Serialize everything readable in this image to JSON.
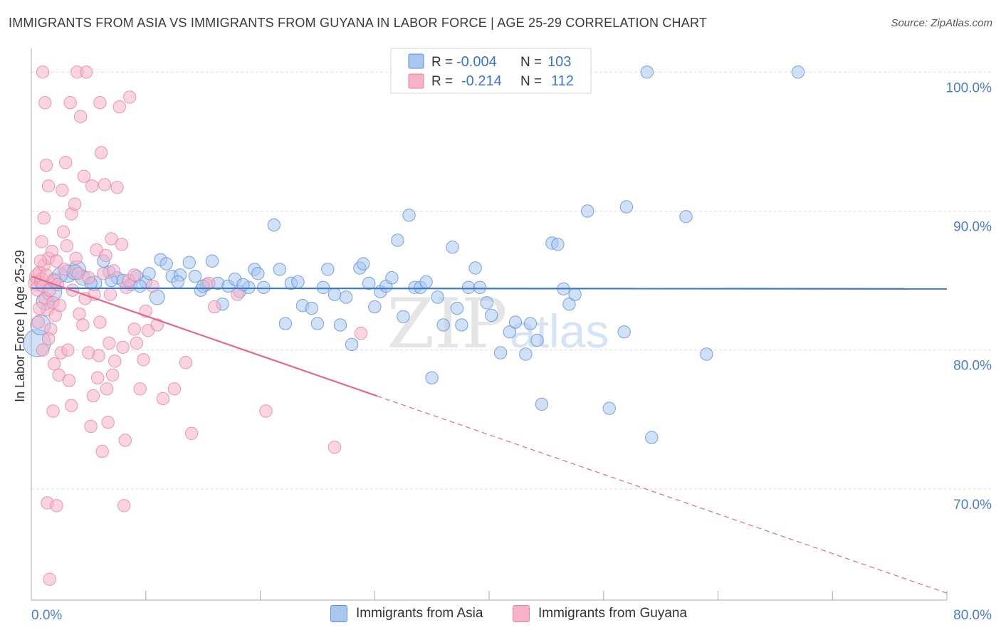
{
  "title": "IMMIGRANTS FROM ASIA VS IMMIGRANTS FROM GUYANA IN LABOR FORCE | AGE 25-29 CORRELATION CHART",
  "source": "Source: ZipAtlas.com",
  "watermark": {
    "zip": "ZIP",
    "atlas": "atlas"
  },
  "colors": {
    "asia_fill": "#a9c6ee",
    "asia_stroke": "#5b8fd6",
    "asia_line": "#3b78c8",
    "guyana_fill": "#f5b3c8",
    "guyana_stroke": "#e8809f",
    "guyana_line": "#e4678f",
    "axis_text": "#4a7cc9",
    "grid": "#dcdcdc"
  },
  "legend": {
    "r_label": "R =",
    "n_label": "N =",
    "rows": [
      {
        "r": "-0.004",
        "n": "103",
        "series": "asia"
      },
      {
        "r": "-0.214",
        "n": "112",
        "series": "guyana"
      }
    ]
  },
  "chart_data": {
    "type": "scatter",
    "xlabel": "",
    "ylabel": "In Labor Force | Age 25-29",
    "xlim": [
      0,
      80
    ],
    "ylim": [
      62,
      101.5
    ],
    "x_tick_labels": [
      "0.0%",
      "80.0%"
    ],
    "y_ticks": [
      70,
      80,
      90,
      100
    ],
    "y_tick_labels": [
      "70.0%",
      "80.0%",
      "90.0%",
      "100.0%"
    ],
    "grid": true,
    "legend_position": "top-center",
    "series": [
      {
        "name": "Immigrants from Asia",
        "key": "asia",
        "trend": {
          "x": [
            0,
            80
          ],
          "y": [
            84.45,
            84.4
          ],
          "solid_until": 80
        },
        "points": [
          [
            0.5,
            80.5,
            22
          ],
          [
            0.8,
            81.8,
            16
          ],
          [
            1.2,
            83.5,
            14
          ],
          [
            1.8,
            84.2,
            16
          ],
          [
            2.0,
            85.0,
            12
          ],
          [
            3.2,
            85.5,
            14
          ],
          [
            4.0,
            85.8,
            14
          ],
          [
            4.5,
            85.2,
            12
          ],
          [
            5.5,
            84.8,
            12
          ],
          [
            6.3,
            86.4,
            10
          ],
          [
            6.8,
            85.6,
            10
          ],
          [
            7.5,
            85.2,
            10
          ],
          [
            8.0,
            85.0,
            10
          ],
          [
            8.7,
            84.7,
            10
          ],
          [
            9.2,
            85.3,
            10
          ],
          [
            10.0,
            84.9,
            10
          ],
          [
            10.3,
            85.5,
            10
          ],
          [
            11.0,
            83.8,
            12
          ],
          [
            11.3,
            86.5,
            10
          ],
          [
            11.8,
            86.2,
            10
          ],
          [
            12.3,
            85.3,
            10
          ],
          [
            13.0,
            85.4,
            10
          ],
          [
            13.8,
            86.3,
            10
          ],
          [
            14.3,
            85.3,
            10
          ],
          [
            14.8,
            84.3,
            10
          ],
          [
            15.3,
            84.7,
            10
          ],
          [
            15.8,
            86.4,
            10
          ],
          [
            16.3,
            84.8,
            10
          ],
          [
            16.7,
            83.3,
            10
          ],
          [
            17.2,
            84.6,
            10
          ],
          [
            17.8,
            85.1,
            10
          ],
          [
            18.2,
            84.2,
            10
          ],
          [
            19.0,
            84.5,
            10
          ],
          [
            19.5,
            85.8,
            10
          ],
          [
            19.8,
            85.5,
            10
          ],
          [
            20.3,
            84.5,
            10
          ],
          [
            21.2,
            89.0,
            10
          ],
          [
            21.7,
            85.8,
            10
          ],
          [
            22.2,
            81.9,
            10
          ],
          [
            22.7,
            84.8,
            10
          ],
          [
            23.3,
            84.9,
            10
          ],
          [
            23.7,
            83.2,
            10
          ],
          [
            24.5,
            83.0,
            10
          ],
          [
            25.0,
            81.9,
            10
          ],
          [
            25.5,
            84.5,
            10
          ],
          [
            25.9,
            85.8,
            10
          ],
          [
            26.5,
            84.0,
            10
          ],
          [
            27.0,
            81.8,
            10
          ],
          [
            27.5,
            83.8,
            10
          ],
          [
            28.0,
            80.4,
            10
          ],
          [
            28.7,
            85.9,
            10
          ],
          [
            29.0,
            86.2,
            10
          ],
          [
            29.5,
            84.8,
            10
          ],
          [
            30.0,
            83.1,
            10
          ],
          [
            30.5,
            84.2,
            10
          ],
          [
            31.0,
            84.6,
            10
          ],
          [
            31.5,
            85.2,
            10
          ],
          [
            32.0,
            87.9,
            10
          ],
          [
            32.5,
            82.4,
            10
          ],
          [
            33.0,
            89.7,
            10
          ],
          [
            33.5,
            84.5,
            10
          ],
          [
            34.0,
            84.5,
            10
          ],
          [
            34.5,
            84.9,
            10
          ],
          [
            35.0,
            78.0,
            10
          ],
          [
            35.5,
            83.8,
            10
          ],
          [
            36.0,
            81.8,
            10
          ],
          [
            36.8,
            87.4,
            10
          ],
          [
            37.2,
            83.0,
            10
          ],
          [
            37.6,
            81.8,
            10
          ],
          [
            38.2,
            84.5,
            10
          ],
          [
            38.8,
            85.9,
            10
          ],
          [
            39.2,
            84.5,
            10
          ],
          [
            39.8,
            83.4,
            10
          ],
          [
            40.2,
            82.5,
            10
          ],
          [
            41.0,
            79.8,
            10
          ],
          [
            41.8,
            81.3,
            10
          ],
          [
            42.3,
            82.0,
            10
          ],
          [
            43.2,
            79.7,
            10
          ],
          [
            43.6,
            81.9,
            10
          ],
          [
            44.2,
            80.7,
            10
          ],
          [
            44.6,
            76.1,
            10
          ],
          [
            45.5,
            87.7,
            10
          ],
          [
            46.0,
            87.6,
            10
          ],
          [
            46.5,
            84.4,
            10
          ],
          [
            47.0,
            83.3,
            10
          ],
          [
            47.5,
            84.0,
            10
          ],
          [
            48.6,
            90.0,
            10
          ],
          [
            50.5,
            75.8,
            10
          ],
          [
            51.8,
            81.3,
            10
          ],
          [
            52.0,
            90.3,
            10
          ],
          [
            54.2,
            73.7,
            10
          ],
          [
            53.8,
            100.0,
            10
          ],
          [
            57.2,
            89.6,
            10
          ],
          [
            59.0,
            79.7,
            10
          ],
          [
            67.0,
            100.0,
            10
          ],
          [
            2.5,
            85.4,
            12
          ],
          [
            3.8,
            85.6,
            12
          ],
          [
            5.2,
            84.8,
            10
          ],
          [
            7.0,
            85.0,
            10
          ],
          [
            9.5,
            84.6,
            10
          ],
          [
            12.8,
            84.9,
            10
          ],
          [
            15.0,
            84.6,
            10
          ],
          [
            18.5,
            84.7,
            10
          ]
        ]
      },
      {
        "name": "Immigrants from Guyana",
        "key": "guyana",
        "trend": {
          "x": [
            0,
            80
          ],
          "y": [
            85.3,
            62.5
          ],
          "solid_until": 30.2
        },
        "points": [
          [
            0.4,
            84.8,
            12
          ],
          [
            0.5,
            85.3,
            12
          ],
          [
            0.6,
            84.4,
            12
          ],
          [
            0.7,
            85.6,
            10
          ],
          [
            0.8,
            84.9,
            10
          ],
          [
            0.9,
            85.1,
            10
          ],
          [
            1.0,
            84.6,
            10
          ],
          [
            1.1,
            86.1,
            10
          ],
          [
            1.2,
            83.7,
            10
          ],
          [
            1.3,
            85.4,
            10
          ],
          [
            1.4,
            82.9,
            10
          ],
          [
            1.5,
            86.6,
            10
          ],
          [
            1.6,
            84.3,
            10
          ],
          [
            1.7,
            81.5,
            10
          ],
          [
            1.8,
            87.1,
            10
          ],
          [
            1.9,
            83.4,
            10
          ],
          [
            2.0,
            85.0,
            10
          ],
          [
            2.1,
            82.5,
            10
          ],
          [
            2.2,
            86.4,
            10
          ],
          [
            2.3,
            84.7,
            10
          ],
          [
            2.4,
            78.2,
            10
          ],
          [
            2.5,
            83.2,
            10
          ],
          [
            2.6,
            79.8,
            10
          ],
          [
            2.7,
            91.5,
            10
          ],
          [
            2.8,
            88.5,
            10
          ],
          [
            2.9,
            85.8,
            10
          ],
          [
            3.0,
            93.5,
            10
          ],
          [
            3.1,
            87.5,
            10
          ],
          [
            3.2,
            80.0,
            10
          ],
          [
            3.3,
            77.8,
            10
          ],
          [
            3.4,
            97.8,
            10
          ],
          [
            3.5,
            89.8,
            10
          ],
          [
            3.6,
            84.3,
            10
          ],
          [
            3.8,
            90.5,
            10
          ],
          [
            3.9,
            86.6,
            10
          ],
          [
            4.0,
            100.0,
            10
          ],
          [
            4.1,
            85.5,
            10
          ],
          [
            4.2,
            82.6,
            10
          ],
          [
            4.3,
            96.8,
            10
          ],
          [
            4.5,
            81.8,
            10
          ],
          [
            4.6,
            92.5,
            10
          ],
          [
            4.8,
            100.0,
            10
          ],
          [
            5.0,
            79.8,
            10
          ],
          [
            5.2,
            74.5,
            10
          ],
          [
            5.3,
            91.8,
            10
          ],
          [
            5.4,
            76.7,
            10
          ],
          [
            5.5,
            84.0,
            10
          ],
          [
            5.7,
            87.2,
            10
          ],
          [
            5.8,
            78.0,
            10
          ],
          [
            5.9,
            79.6,
            10
          ],
          [
            6.0,
            97.8,
            10
          ],
          [
            6.1,
            94.2,
            10
          ],
          [
            6.2,
            72.7,
            10
          ],
          [
            6.3,
            85.5,
            10
          ],
          [
            6.4,
            91.9,
            10
          ],
          [
            6.5,
            86.8,
            10
          ],
          [
            6.6,
            77.2,
            10
          ],
          [
            6.7,
            74.8,
            10
          ],
          [
            6.8,
            80.5,
            10
          ],
          [
            6.9,
            84.0,
            10
          ],
          [
            7.0,
            88.0,
            10
          ],
          [
            7.1,
            78.2,
            10
          ],
          [
            7.2,
            85.7,
            10
          ],
          [
            7.3,
            79.2,
            10
          ],
          [
            7.5,
            91.7,
            10
          ],
          [
            7.7,
            97.5,
            10
          ],
          [
            7.9,
            87.6,
            10
          ],
          [
            8.0,
            80.2,
            10
          ],
          [
            8.1,
            68.8,
            10
          ],
          [
            8.2,
            73.5,
            10
          ],
          [
            8.3,
            84.5,
            10
          ],
          [
            8.5,
            85.0,
            10
          ],
          [
            8.6,
            98.2,
            10
          ],
          [
            9.0,
            81.5,
            10
          ],
          [
            9.2,
            80.5,
            10
          ],
          [
            9.5,
            77.2,
            10
          ],
          [
            9.8,
            79.3,
            10
          ],
          [
            10.0,
            82.8,
            10
          ],
          [
            10.2,
            81.4,
            10
          ],
          [
            10.6,
            84.6,
            10
          ],
          [
            1.0,
            100.0,
            10
          ],
          [
            1.2,
            97.8,
            10
          ],
          [
            1.3,
            93.3,
            10
          ],
          [
            1.5,
            91.8,
            10
          ],
          [
            1.1,
            89.5,
            10
          ],
          [
            1.4,
            69.0,
            10
          ],
          [
            1.6,
            63.5,
            10
          ],
          [
            1.9,
            75.6,
            10
          ],
          [
            0.6,
            82.0,
            10
          ],
          [
            0.7,
            83.0,
            10
          ],
          [
            0.8,
            86.4,
            10
          ],
          [
            0.9,
            87.8,
            10
          ],
          [
            1.5,
            80.8,
            10
          ],
          [
            1.0,
            80.0,
            10
          ],
          [
            2.0,
            79.0,
            10
          ],
          [
            2.2,
            68.8,
            10
          ],
          [
            12.5,
            77.2,
            10
          ],
          [
            13.5,
            79.1,
            10
          ],
          [
            14.0,
            74.0,
            10
          ],
          [
            15.5,
            84.8,
            10
          ],
          [
            16.0,
            83.1,
            10
          ],
          [
            18.0,
            84.0,
            10
          ],
          [
            20.5,
            75.6,
            10
          ],
          [
            26.5,
            73.0,
            10
          ],
          [
            28.8,
            81.2,
            10
          ],
          [
            11.5,
            76.5,
            10
          ],
          [
            11.0,
            81.8,
            10
          ],
          [
            5.0,
            85.2,
            10
          ],
          [
            4.7,
            83.7,
            10
          ],
          [
            3.5,
            76.0,
            10
          ],
          [
            6.0,
            82.0,
            10
          ],
          [
            9.0,
            85.4,
            10
          ]
        ]
      }
    ]
  }
}
